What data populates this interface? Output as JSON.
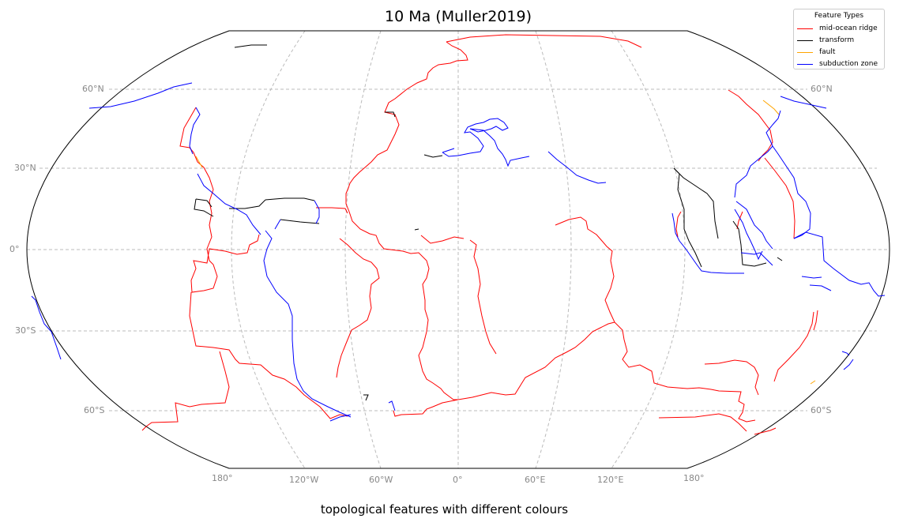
{
  "title": "10 Ma (Muller2019)",
  "caption": "topological features with different colours",
  "legend": {
    "title": "Feature Types",
    "items": [
      {
        "label": "mid-ocean ridge",
        "color": "#ff0000"
      },
      {
        "label": "transform",
        "color": "#000000"
      },
      {
        "label": "fault",
        "color": "#ffa500"
      },
      {
        "label": "subduction zone",
        "color": "#0000ff"
      }
    ]
  },
  "map": {
    "projection": "Robinson",
    "central_longitude": 0,
    "gridlines": "dashed gray",
    "lat_labels_left": [
      "60°N",
      "30°N",
      "0°",
      "30°S",
      "60°S"
    ],
    "lat_labels_right": [
      "60°N",
      "60°S"
    ],
    "lon_labels": [
      "180°",
      "120°W",
      "60°W",
      "0°",
      "60°E",
      "120°E",
      "180°"
    ]
  },
  "colors": {
    "ridge": "#ff0000",
    "transform": "#000000",
    "fault": "#ffa500",
    "subduction": "#0000ff",
    "grid": "#bbbbbb",
    "label": "#888888"
  }
}
